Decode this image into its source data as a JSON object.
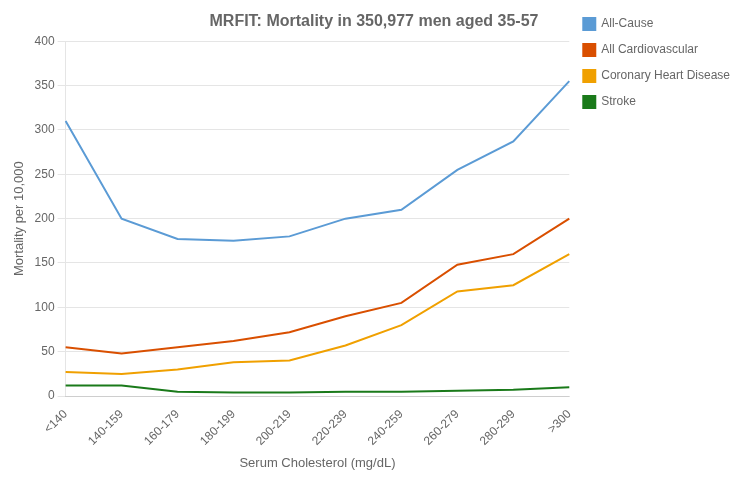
{
  "chart_data": {
    "type": "line",
    "title": "MRFIT: Mortality in 350,977 men aged 35-57",
    "xlabel": "Serum Cholesterol (mg/dL)",
    "ylabel": "Mortality per 10,000",
    "categories": [
      "<140",
      "140-159",
      "160-179",
      "180-199",
      "200-219",
      "220-239",
      "240-259",
      "260-279",
      "280-299",
      ">300"
    ],
    "series": [
      {
        "name": "All-Cause",
        "color": "#5B9BD5",
        "values": [
          310,
          200,
          177,
          175,
          180,
          200,
          210,
          255,
          287,
          355
        ]
      },
      {
        "name": "All Cardiovascular",
        "color": "#D94F00",
        "values": [
          55,
          48,
          55,
          62,
          72,
          90,
          105,
          148,
          160,
          200
        ]
      },
      {
        "name": "Coronary Heart Disease",
        "color": "#F0A000",
        "values": [
          27,
          25,
          30,
          38,
          40,
          57,
          80,
          118,
          125,
          160
        ]
      },
      {
        "name": "Stroke",
        "color": "#1A7A1A",
        "values": [
          12,
          12,
          5,
          4,
          4,
          5,
          5,
          6,
          7,
          10
        ]
      }
    ],
    "ylim": [
      0,
      400
    ],
    "yticks": [
      0,
      50,
      100,
      150,
      200,
      250,
      300,
      350,
      400
    ],
    "grid": true,
    "legend": "right"
  }
}
